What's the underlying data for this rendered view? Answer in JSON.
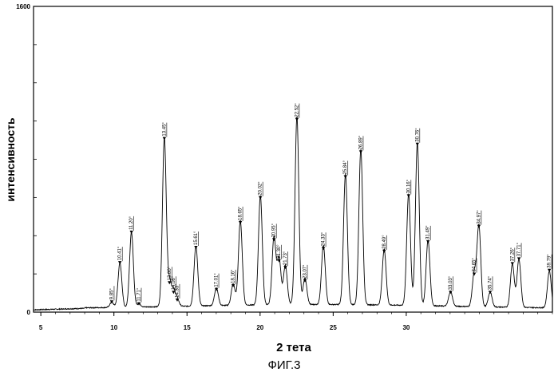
{
  "chart_data": {
    "type": "line",
    "xlabel": "2 тета",
    "ylabel": "интенсивность",
    "xlim": [
      4.5,
      40
    ],
    "ylim": [
      0,
      1600
    ],
    "x_ticks": [
      5,
      10,
      15,
      20,
      25,
      30
    ],
    "x_tick_labels": [
      "5",
      "10",
      "15",
      "20",
      "25",
      "30"
    ],
    "y_ticks": [
      0,
      1600
    ],
    "y_tick_labels": [
      "0",
      "1600"
    ],
    "grid": false,
    "baseline": 18,
    "peaks": [
      {
        "x": 9.85,
        "y": 45,
        "label": "9.85°"
      },
      {
        "x": 10.41,
        "y": 250,
        "label": "10.41°"
      },
      {
        "x": 11.2,
        "y": 410,
        "label": "11.20°"
      },
      {
        "x": 11.71,
        "y": 35,
        "label": "11.71°"
      },
      {
        "x": 13.45,
        "y": 900,
        "label": "13.45°"
      },
      {
        "x": 13.8,
        "y": 145,
        "label": "13.80°"
      },
      {
        "x": 14.08,
        "y": 95,
        "label": "14.08°"
      },
      {
        "x": 14.33,
        "y": 55,
        "label": "14.33°"
      },
      {
        "x": 15.61,
        "y": 330,
        "label": "15.61°"
      },
      {
        "x": 17.01,
        "y": 110,
        "label": "17.01°"
      },
      {
        "x": 18.16,
        "y": 130,
        "label": "18.16°"
      },
      {
        "x": 18.65,
        "y": 460,
        "label": "18.65°"
      },
      {
        "x": 20.02,
        "y": 590,
        "label": "20.02°"
      },
      {
        "x": 20.95,
        "y": 370,
        "label": "20.95°"
      },
      {
        "x": 21.3,
        "y": 260,
        "label": "21.30°"
      },
      {
        "x": 21.73,
        "y": 225,
        "label": "21.73°"
      },
      {
        "x": 22.52,
        "y": 1000,
        "label": "22.52°"
      },
      {
        "x": 23.07,
        "y": 155,
        "label": "23.07°"
      },
      {
        "x": 24.33,
        "y": 325,
        "label": "24.33°"
      },
      {
        "x": 25.84,
        "y": 700,
        "label": "25.84°"
      },
      {
        "x": 26.89,
        "y": 830,
        "label": "26.89°"
      },
      {
        "x": 28.49,
        "y": 310,
        "label": "28.49°"
      },
      {
        "x": 30.16,
        "y": 600,
        "label": "30.16°"
      },
      {
        "x": 30.76,
        "y": 870,
        "label": "30.76°"
      },
      {
        "x": 31.49,
        "y": 360,
        "label": "31.49°"
      },
      {
        "x": 33.03,
        "y": 95,
        "label": "33.03°"
      },
      {
        "x": 34.65,
        "y": 190,
        "label": "34.65°"
      },
      {
        "x": 34.97,
        "y": 440,
        "label": "34.97°"
      },
      {
        "x": 35.74,
        "y": 95,
        "label": "35.74°"
      },
      {
        "x": 37.26,
        "y": 245,
        "label": "37.26°"
      },
      {
        "x": 37.71,
        "y": 270,
        "label": "37.71°"
      },
      {
        "x": 39.79,
        "y": 210,
        "label": "39.79°"
      }
    ]
  },
  "caption": "ФИГ.3"
}
